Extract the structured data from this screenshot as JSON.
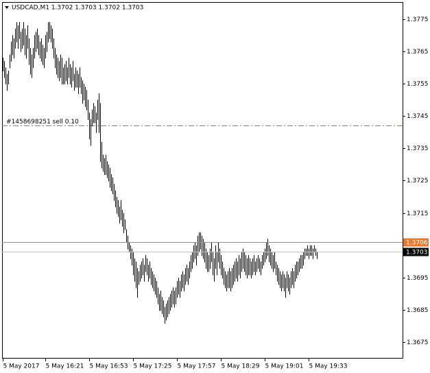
{
  "chart_data": {
    "type": "ohlc",
    "title": "USDCAD,M1  1.3702 1.3703 1.3702 1.3703",
    "color": "#000000",
    "high": [
      1.3763,
      1.3762,
      1.376,
      1.3758,
      1.3759,
      1.3764,
      1.3768,
      1.377,
      1.3769,
      1.3772,
      1.3774,
      1.3773,
      1.3774,
      1.3771,
      1.3772,
      1.3774,
      1.3772,
      1.377,
      1.3773,
      1.3769,
      1.3766,
      1.3764,
      1.3766,
      1.377,
      1.3771,
      1.3772,
      1.377,
      1.3768,
      1.3769,
      1.3767,
      1.3766,
      1.377,
      1.3771,
      1.3774,
      1.3774,
      1.3773,
      1.3772,
      1.3769,
      1.3766,
      1.3764,
      1.3763,
      1.3762,
      1.3764,
      1.3763,
      1.376,
      1.3761,
      1.3762,
      1.376,
      1.3763,
      1.3761,
      1.376,
      1.3762,
      1.3758,
      1.376,
      1.3759,
      1.3758,
      1.376,
      1.3757,
      1.3756,
      1.3755,
      1.3754,
      1.3753,
      1.375,
      1.3746,
      1.3744,
      1.3747,
      1.3749,
      1.3748,
      1.3746,
      1.375,
      1.3752,
      1.3749,
      1.3737,
      1.3733,
      1.3732,
      1.3733,
      1.3731,
      1.373,
      1.3729,
      1.3727,
      1.3726,
      1.3724,
      1.3722,
      1.372,
      1.3719,
      1.3717,
      1.3719,
      1.3716,
      1.3715,
      1.3713,
      1.371,
      1.3708,
      1.3706,
      1.3705,
      1.3704,
      1.3703,
      1.3701,
      1.37,
      1.3698,
      1.3697,
      1.3699,
      1.37,
      1.3701,
      1.3699,
      1.3702,
      1.3701,
      1.3699,
      1.37,
      1.3698,
      1.3697,
      1.3696,
      1.3695,
      1.3694,
      1.3692,
      1.369,
      1.3691,
      1.3689,
      1.3688,
      1.3686,
      1.3687,
      1.3688,
      1.3689,
      1.369,
      1.3691,
      1.3692,
      1.3691,
      1.3692,
      1.3694,
      1.3695,
      1.3694,
      1.3696,
      1.3697,
      1.3696,
      1.3698,
      1.3699,
      1.3698,
      1.37,
      1.3702,
      1.3703,
      1.3705,
      1.3706,
      1.3705,
      1.3708,
      1.3709,
      1.3709,
      1.3708,
      1.3707,
      1.3706,
      1.3704,
      1.3703,
      1.3702,
      1.3704,
      1.3706,
      1.3703,
      1.3701,
      1.3705,
      1.3703,
      1.3706,
      1.3704,
      1.3702,
      1.37,
      1.3698,
      1.3697,
      1.3696,
      1.3697,
      1.3698,
      1.3697,
      1.3698,
      1.3699,
      1.37,
      1.3701,
      1.37,
      1.3702,
      1.3701,
      1.3703,
      1.3704,
      1.3703,
      1.3702,
      1.3701,
      1.3702,
      1.3701,
      1.37,
      1.3701,
      1.3702,
      1.37,
      1.3701,
      1.3702,
      1.3701,
      1.37,
      1.3702,
      1.3703,
      1.3704,
      1.3706,
      1.3707,
      1.3705,
      1.3704,
      1.3703,
      1.3702,
      1.3703,
      1.37,
      1.3699,
      1.3698,
      1.3697,
      1.3696,
      1.3697,
      1.3696,
      1.3695,
      1.3697,
      1.3696,
      1.3695,
      1.3697,
      1.3698,
      1.3697,
      1.3699,
      1.37,
      1.37,
      1.3701,
      1.3702,
      1.3702,
      1.3703,
      1.3704,
      1.3704,
      1.3705,
      1.3704,
      1.3705,
      1.3705,
      1.3704,
      1.3705,
      1.3704,
      1.3703
    ],
    "low": [
      1.3759,
      1.3757,
      1.3755,
      1.3753,
      1.3755,
      1.376,
      1.3762,
      1.3764,
      1.3763,
      1.3766,
      1.3768,
      1.3766,
      1.3769,
      1.3765,
      1.3766,
      1.3767,
      1.3764,
      1.3763,
      1.3766,
      1.3761,
      1.3758,
      1.3757,
      1.376,
      1.3763,
      1.3765,
      1.3766,
      1.3764,
      1.3763,
      1.3762,
      1.3761,
      1.376,
      1.3763,
      1.3765,
      1.3768,
      1.3769,
      1.3768,
      1.3766,
      1.3763,
      1.376,
      1.3758,
      1.3757,
      1.3756,
      1.3757,
      1.3755,
      1.3755,
      1.3755,
      1.3756,
      1.3755,
      1.3757,
      1.3755,
      1.3754,
      1.3756,
      1.3753,
      1.3754,
      1.3754,
      1.3752,
      1.3754,
      1.3752,
      1.3749,
      1.375,
      1.3748,
      1.3747,
      1.3744,
      1.3738,
      1.3736,
      1.3742,
      1.3743,
      1.3743,
      1.374,
      1.3744,
      1.374,
      1.3731,
      1.3729,
      1.3728,
      1.3727,
      1.3727,
      1.3726,
      1.3725,
      1.3723,
      1.3722,
      1.3721,
      1.3719,
      1.3717,
      1.3715,
      1.3714,
      1.3712,
      1.3713,
      1.3711,
      1.3709,
      1.371,
      1.3706,
      1.3704,
      1.3703,
      1.3701,
      1.3699,
      1.3696,
      1.3694,
      1.3692,
      1.3689,
      1.3693,
      1.3694,
      1.3695,
      1.3696,
      1.3694,
      1.3697,
      1.3696,
      1.3694,
      1.3695,
      1.3693,
      1.3692,
      1.3691,
      1.369,
      1.3689,
      1.3687,
      1.3685,
      1.3685,
      1.3684,
      1.3683,
      1.3681,
      1.3682,
      1.3683,
      1.3684,
      1.3685,
      1.3686,
      1.3687,
      1.3686,
      1.3687,
      1.3689,
      1.369,
      1.3689,
      1.3691,
      1.3692,
      1.3691,
      1.3693,
      1.3694,
      1.3693,
      1.3695,
      1.3697,
      1.3698,
      1.37,
      1.3701,
      1.3699,
      1.3702,
      1.3703,
      1.3704,
      1.3702,
      1.3701,
      1.37,
      1.3698,
      1.3697,
      1.3697,
      1.3698,
      1.37,
      1.3696,
      1.3694,
      1.3698,
      1.3696,
      1.37,
      1.3698,
      1.3696,
      1.3695,
      1.3693,
      1.3692,
      1.3691,
      1.3692,
      1.3692,
      1.3691,
      1.3692,
      1.3693,
      1.3694,
      1.3695,
      1.3694,
      1.3696,
      1.3695,
      1.3697,
      1.3698,
      1.3697,
      1.3696,
      1.3695,
      1.3696,
      1.3696,
      1.3695,
      1.3696,
      1.3697,
      1.3696,
      1.3697,
      1.3698,
      1.3697,
      1.3696,
      1.3698,
      1.3699,
      1.37,
      1.3701,
      1.3702,
      1.37,
      1.3699,
      1.3698,
      1.3697,
      1.3698,
      1.3696,
      1.3694,
      1.3693,
      1.3692,
      1.3691,
      1.3692,
      1.3691,
      1.3689,
      1.3692,
      1.3691,
      1.369,
      1.3692,
      1.3693,
      1.3692,
      1.3694,
      1.3695,
      1.3696,
      1.3697,
      1.3698,
      1.3698,
      1.3699,
      1.3701,
      1.3702,
      1.3702,
      1.3701,
      1.3702,
      1.3702,
      1.3701,
      1.3703,
      1.3702,
      1.3701
    ],
    "xlim": [
      -0.5,
      291.5
    ],
    "xticks": [
      {
        "value": 0,
        "label": "5 May 2017"
      },
      {
        "value": 31,
        "label": "5 May 16:21"
      },
      {
        "value": 63,
        "label": "5 May 16:53"
      },
      {
        "value": 95,
        "label": "5 May 17:25"
      },
      {
        "value": 127,
        "label": "5 May 17:57"
      },
      {
        "value": 159,
        "label": "5 May 18:29"
      },
      {
        "value": 191,
        "label": "5 May 19:01"
      },
      {
        "value": 223,
        "label": "5 May 19:33"
      }
    ],
    "ylim": [
      1.367,
      1.378
    ],
    "yticks": [
      1.3675,
      1.3685,
      1.3695,
      1.3715,
      1.3725,
      1.3735,
      1.3745,
      1.3755,
      1.3765,
      1.3775
    ],
    "order_line": {
      "value": 1.3742,
      "text": "#1458698251 sell 0.10",
      "color": "#d2691e"
    },
    "price_lines": [
      {
        "value": 1.3706,
        "color": "#e8792c"
      },
      {
        "value": 1.3703,
        "color": "#c0c0c0"
      }
    ]
  }
}
